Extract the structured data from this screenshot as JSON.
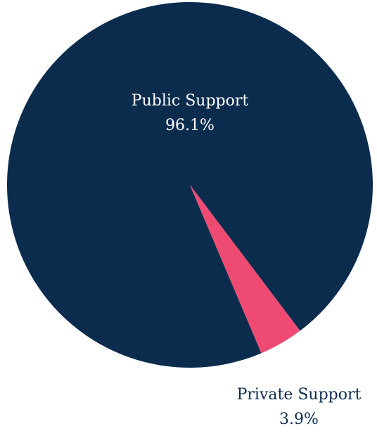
{
  "chart_data": {
    "type": "pie",
    "categories": [
      "Public Support",
      "Private Support"
    ],
    "values": [
      96.1,
      3.9
    ],
    "value_labels": [
      "96.1%",
      "3.9%"
    ],
    "colors": [
      "#0c2c4e",
      "#ef4b72"
    ]
  }
}
